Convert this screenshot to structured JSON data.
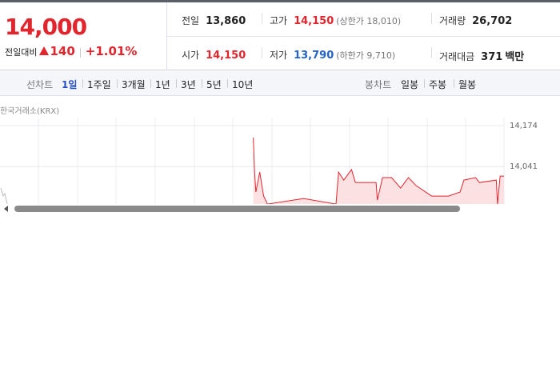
{
  "price": {
    "current": "14,000",
    "change_label": "전일대비",
    "change": "140",
    "change_pct": "+1.01%"
  },
  "stats": [
    [
      {
        "label": "전일",
        "value": "13,860"
      },
      {
        "label": "고가",
        "value": "14,150",
        "sub": "(상한가 18,010)"
      },
      {
        "label": "거래량",
        "value": "26,702"
      }
    ],
    [
      {
        "label": "시가",
        "value": "14,150"
      },
      {
        "label": "저가",
        "value": "13,790",
        "sub": "(하한가 9,710)"
      },
      {
        "label": "거래대금",
        "value": "371",
        "unit": "백만"
      }
    ]
  ],
  "tabs": {
    "line_label": "선차트",
    "line_items": [
      "1일",
      "1주일",
      "3개월",
      "1년",
      "3년",
      "5년",
      "10년"
    ],
    "candle_label": "봉차트",
    "candle_items": [
      "일봉",
      "주봉",
      "월봉"
    ]
  },
  "chart_data": {
    "type": "line",
    "source": "한국거래소(KRX)",
    "color": "#e2242d",
    "x": [
      196,
      197,
      198,
      201,
      204,
      207,
      235,
      260,
      262,
      266,
      272,
      275,
      291,
      292,
      296,
      303,
      310,
      316,
      322,
      334,
      347,
      356,
      359,
      368,
      371,
      384,
      385,
      387,
      390
    ],
    "values": [
      14135,
      14023,
      13958,
      14023,
      13945,
      13919,
      13937,
      13919,
      14023,
      13997,
      14031,
      13989,
      13989,
      13932,
      14005,
      14005,
      13971,
      14005,
      13979,
      13945,
      13945,
      13958,
      13997,
      14005,
      13989,
      13997,
      13919,
      14010,
      14010
    ],
    "xlim": [
      0,
      390
    ],
    "ylim": [
      13900,
      14200
    ],
    "yticks": [
      {
        "value": 14174,
        "label": "14,174"
      },
      {
        "value": 14041,
        "label": "14,041"
      }
    ],
    "grid": true
  }
}
